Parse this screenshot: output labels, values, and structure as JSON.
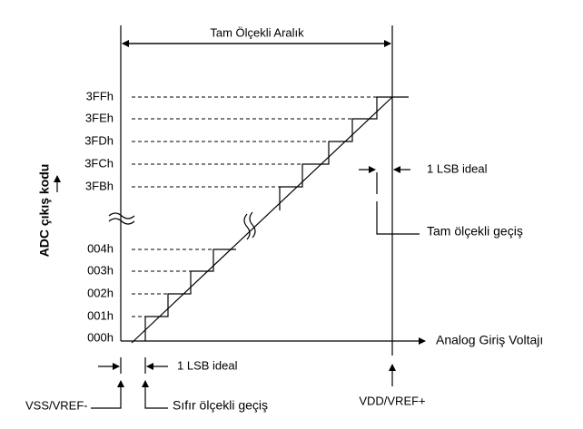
{
  "title": "Tam Ölçekli Aralık",
  "y_axis_label": "ADC çıkış kodu",
  "x_axis_label": "Analog Giriş Voltajı",
  "codes": [
    "3FFh",
    "3FEh",
    "3FDh",
    "3FCh",
    "3FBh",
    "004h",
    "003h",
    "002h",
    "001h",
    "000h"
  ],
  "annotations": {
    "lsb_right": "1 LSB ideal",
    "full_scale": "Tam ölçekli geçiş",
    "lsb_bottom": "1 LSB ideal",
    "zero_scale": "Sıfır ölçekli geçiş",
    "vss": "VSS/VREF-",
    "vdd": "VDD/VREF+"
  }
}
